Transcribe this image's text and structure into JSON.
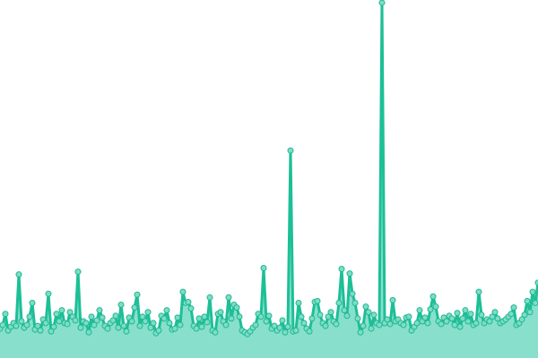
{
  "chart_data": {
    "type": "area",
    "title": "",
    "xlabel": "",
    "ylabel": "",
    "grid": false,
    "axes_visible": false,
    "markers": true,
    "ylim": [
      0,
      390
    ],
    "colors": {
      "line": "#1dbf97",
      "fill": "#88e0cc",
      "marker_fill": "#7fdcc4",
      "marker_stroke": "#1db894"
    },
    "series": [
      {
        "values": [
          32,
          36,
          48,
          30,
          34,
          38,
          35,
          91,
          40,
          33,
          36,
          45,
          60,
          31,
          35,
          30,
          42,
          38,
          70,
          29,
          34,
          48,
          40,
          52,
          38,
          37,
          50,
          45,
          41,
          94,
          33,
          40,
          38,
          28,
          45,
          36,
          41,
          52,
          44,
          35,
          32,
          38,
          41,
          46,
          33,
          58,
          35,
          29,
          44,
          40,
          55,
          69,
          35,
          45,
          40,
          50,
          33,
          38,
          27,
          30,
          46,
          43,
          52,
          38,
          31,
          32,
          44,
          36,
          72,
          60,
          61,
          54,
          35,
          32,
          43,
          34,
          45,
          39,
          66,
          30,
          28,
          48,
          50,
          40,
          36,
          66,
          43,
          58,
          55,
          45,
          30,
          28,
          26,
          29,
          33,
          36,
          48,
          45,
          98,
          40,
          46,
          32,
          35,
          30,
          33,
          41,
          28,
          34,
          226,
          29,
          30,
          60,
          45,
          38,
          32,
          29,
          43,
          61,
          62,
          47,
          38,
          35,
          45,
          50,
          40,
          37,
          60,
          97,
          52,
          46,
          92,
          70,
          60,
          43,
          28,
          35,
          56,
          50,
          32,
          47,
          38,
          36,
          387,
          38,
          42,
          37,
          63,
          40,
          42,
          38,
          36,
          44,
          45,
          30,
          34,
          38,
          52,
          40,
          44,
          38,
          53,
          67,
          56,
          40,
          37,
          44,
          40,
          46,
          43,
          36,
          49,
          34,
          43,
          52,
          40,
          48,
          36,
          38,
          72,
          47,
          38,
          42,
          40,
          45,
          50,
          43,
          38,
          40,
          42,
          45,
          48,
          55,
          36,
          38,
          42,
          47,
          62,
          50,
          72,
          60,
          82
        ]
      }
    ]
  }
}
